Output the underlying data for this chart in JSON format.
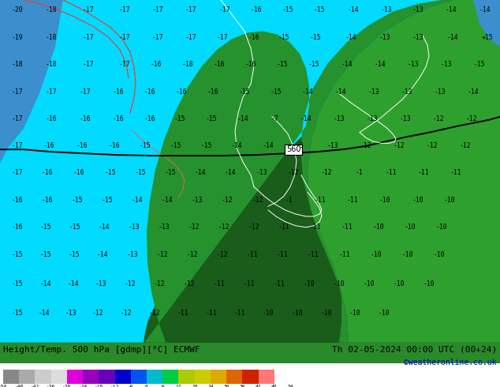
{
  "title_left": "Height/Temp. 500 hPa [gdmp][°C] ECMWF",
  "title_right": "Th 02-05-2024 00:00 UTC (00+24)",
  "credit": "©weatheronline.co.uk",
  "fig_bg": "#ffffff",
  "map_bg_green_dark": "#1a5c1a",
  "map_bg_green_mid": "#2e8b2e",
  "map_bg_green_light": "#3aaa3a",
  "map_cyan": "#00e5ff",
  "map_blue": "#4499bb",
  "contour_label": "560",
  "colorbar_colors": [
    "#888888",
    "#aaaaaa",
    "#cccccc",
    "#dddddd",
    "#dd00dd",
    "#9900bb",
    "#6600bb",
    "#0000cc",
    "#0055ee",
    "#00bbcc",
    "#00cc44",
    "#aacc00",
    "#cccc00",
    "#ddaa00",
    "#dd6600",
    "#cc2200",
    "#ff7777",
    "#ffffff"
  ],
  "colorbar_ticks": [
    "-54",
    "-48",
    "-42",
    "-36",
    "-30",
    "-24",
    "-18",
    "-12",
    "-6",
    "0",
    "6",
    "12",
    "18",
    "24",
    "30",
    "36",
    "42",
    "48",
    "54"
  ],
  "title_bg": "#2e8b2e",
  "credit_color": "#0000cc",
  "title_color": "#000000"
}
